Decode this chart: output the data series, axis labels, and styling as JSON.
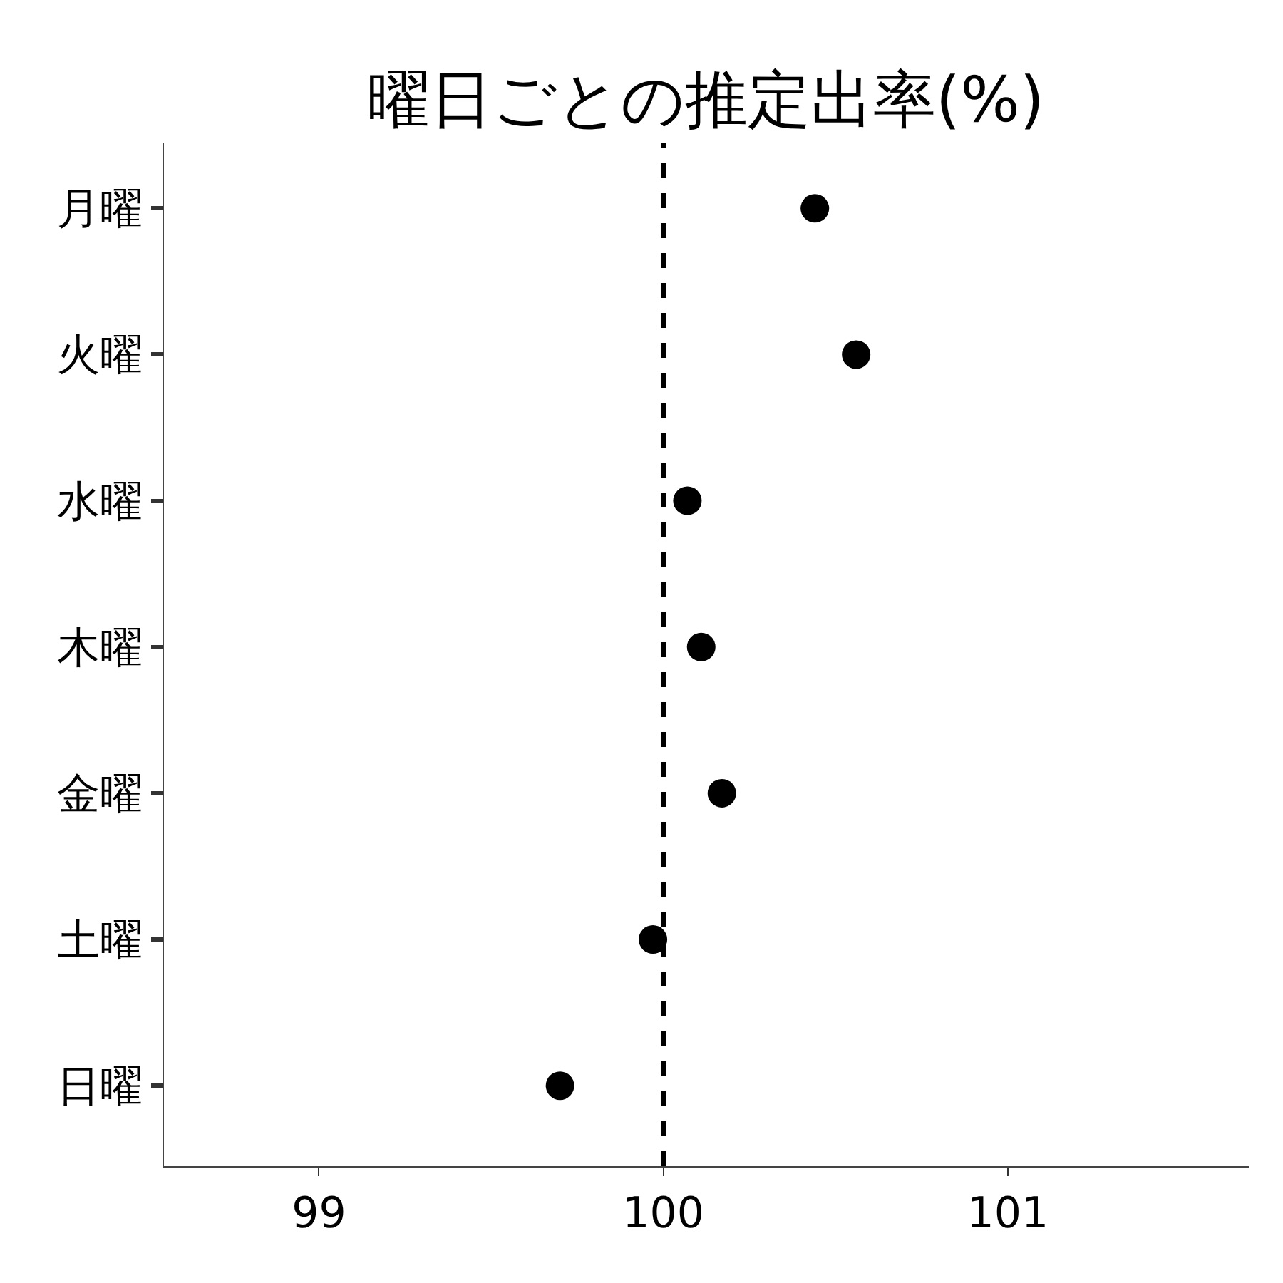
{
  "chart_data": {
    "type": "scatter",
    "title": "曜日ごとの推定出率(%)",
    "orientation": "horizontal",
    "categories": [
      "月曜",
      "火曜",
      "水曜",
      "木曜",
      "金曜",
      "土曜",
      "日曜"
    ],
    "series": [
      {
        "color": "#000000",
        "values": [
          100.44,
          100.56,
          100.07,
          100.11,
          100.17,
          99.97,
          99.7
        ]
      }
    ],
    "xlim": [
      98.55,
      101.7
    ],
    "xticks": [
      99,
      100,
      101
    ],
    "marker": "circle",
    "ref_lines": [
      {
        "axis": "x",
        "value": 100,
        "color": "#000000",
        "line_style": "dashed"
      }
    ]
  }
}
